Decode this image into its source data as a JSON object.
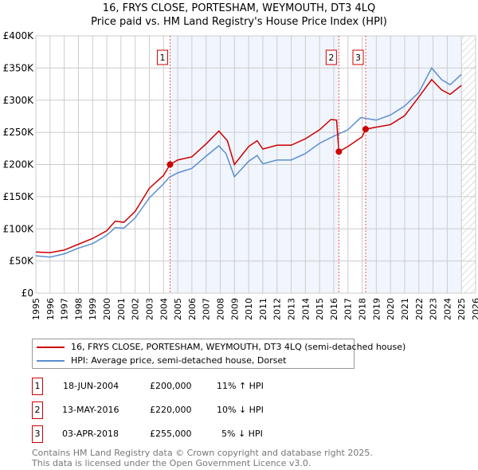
{
  "title": "16, FRYS CLOSE, PORTESHAM, WEYMOUTH, DT3 4LQ",
  "subtitle": "Price paid vs. HM Land Registry's House Price Index (HPI)",
  "chart_data": {
    "type": "line",
    "xlim": [
      1995,
      2026
    ],
    "ylim": [
      0,
      400000
    ],
    "yticks": [
      {
        "v": 0,
        "label": "£0"
      },
      {
        "v": 50000,
        "label": "£50K"
      },
      {
        "v": 100000,
        "label": "£100K"
      },
      {
        "v": 150000,
        "label": "£150K"
      },
      {
        "v": 200000,
        "label": "£200K"
      },
      {
        "v": 250000,
        "label": "£250K"
      },
      {
        "v": 300000,
        "label": "£300K"
      },
      {
        "v": 350000,
        "label": "£350K"
      },
      {
        "v": 400000,
        "label": "£400K"
      }
    ],
    "xticks": [
      "1995",
      "1996",
      "1997",
      "1998",
      "1999",
      "2000",
      "2001",
      "2002",
      "2003",
      "2004",
      "2005",
      "2006",
      "2007",
      "2008",
      "2009",
      "2010",
      "2011",
      "2012",
      "2013",
      "2014",
      "2015",
      "2016",
      "2017",
      "2018",
      "2019",
      "2020",
      "2021",
      "2022",
      "2023",
      "2024",
      "2025",
      "2026"
    ],
    "forecast_from": 2025,
    "series": [
      {
        "name": "16, FRYS CLOSE, PORTESHAM, WEYMOUTH, DT3 4LQ (semi-detached house)",
        "color": "#cc0000",
        "x": [
          1995,
          1996,
          1997,
          1998,
          1999,
          2000,
          2000.6,
          2001.2,
          2002,
          2003,
          2004,
          2004.46,
          2005,
          2006,
          2007,
          2007.9,
          2008.5,
          2009,
          2010,
          2010.6,
          2011,
          2012,
          2013,
          2014,
          2015,
          2015.8,
          2016.2,
          2016.36,
          2017,
          2018,
          2018.25,
          2019,
          2020,
          2021,
          2022,
          2022.9,
          2023.6,
          2024.2,
          2025
        ],
        "y": [
          64,
          63,
          67,
          76,
          85,
          97,
          112,
          110,
          127,
          163,
          183,
          200,
          207,
          212,
          232,
          252,
          237,
          200,
          228,
          237,
          224,
          230,
          230,
          240,
          254,
          270,
          269,
          220,
          228,
          243,
          255,
          258,
          262,
          276,
          305,
          332,
          316,
          309,
          323
        ]
      },
      {
        "name": "HPI: Average price, semi-detached house, Dorset",
        "color": "#5b8fd0",
        "x": [
          1995,
          1996,
          1997,
          1998,
          1999,
          2000,
          2000.6,
          2001.2,
          2002,
          2003,
          2004,
          2004.4,
          2005,
          2006,
          2007,
          2007.9,
          2008.4,
          2009,
          2010,
          2010.6,
          2011,
          2012,
          2013,
          2014,
          2015,
          2016,
          2017,
          2017.9,
          2019,
          2020,
          2021,
          2022,
          2022.9,
          2023.6,
          2024.2,
          2025
        ],
        "y": [
          58,
          56,
          61,
          70,
          77,
          90,
          102,
          101,
          117,
          148,
          170,
          180,
          187,
          194,
          213,
          229,
          217,
          181,
          205,
          214,
          201,
          207,
          207,
          217,
          233,
          244,
          254,
          273,
          269,
          277,
          291,
          312,
          350,
          332,
          324,
          340
        ]
      }
    ],
    "y_unit": "thousand GBP",
    "sales": [
      {
        "n": "1",
        "x": 2004.46,
        "y": 200,
        "date": "18-JUN-2004",
        "price": "£200,000",
        "hpi": "11% ↑ HPI"
      },
      {
        "n": "2",
        "x": 2016.36,
        "y": 220,
        "date": "13-MAY-2016",
        "price": "£220,000",
        "hpi": "10% ↓ HPI"
      },
      {
        "n": "3",
        "x": 2018.25,
        "y": 255,
        "date": "03-APR-2018",
        "price": "£255,000",
        "hpi": "5% ↓ HPI"
      }
    ]
  },
  "legend": {
    "red": "16, FRYS CLOSE, PORTESHAM, WEYMOUTH, DT3 4LQ (semi-detached house)",
    "blue": "HPI: Average price, semi-detached house, Dorset"
  },
  "footer": [
    "Contains HM Land Registry data © Crown copyright and database right 2025.",
    "This data is licensed under the Open Government Licence v3.0."
  ]
}
